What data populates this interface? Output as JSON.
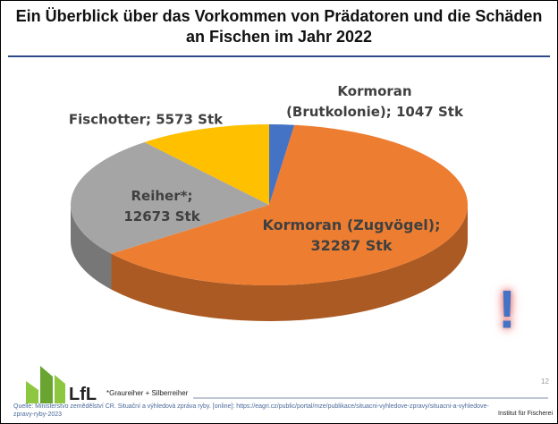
{
  "chart_data": {
    "type": "pie",
    "title": "Ein Überblick über das Vorkommen von Prädatoren und die Schäden an Fischen im Jahr 2022",
    "values": [
      1047,
      32287,
      12673,
      5573
    ],
    "value_labels": [
      "Kormoran\n(Brutkolonie); 1047 Stk",
      "Kormoran (Zugvögel);\n32287 Stk",
      "Reiher*;\n12673 Stk",
      "Fischotter; 5573 Stk"
    ],
    "colors": [
      "#4472c4",
      "#ed7d31",
      "#a5a5a5",
      "#ffc000"
    ],
    "footnote": "*Graureiher + Silberreiher",
    "annotation": "!"
  },
  "footer": {
    "logo": "LfL",
    "page": "12",
    "source": "Quelle: Ministerstvo zemědělství ČR. Situační a výhledová zpráva ryby. [online]: https://eagri.cz/public/portal/mze/publikace/situacni-vyhledove-zpravy/situacni-a-vyhledove-zpravy-ryby-2023",
    "institute": "Institut für Fischerei"
  }
}
